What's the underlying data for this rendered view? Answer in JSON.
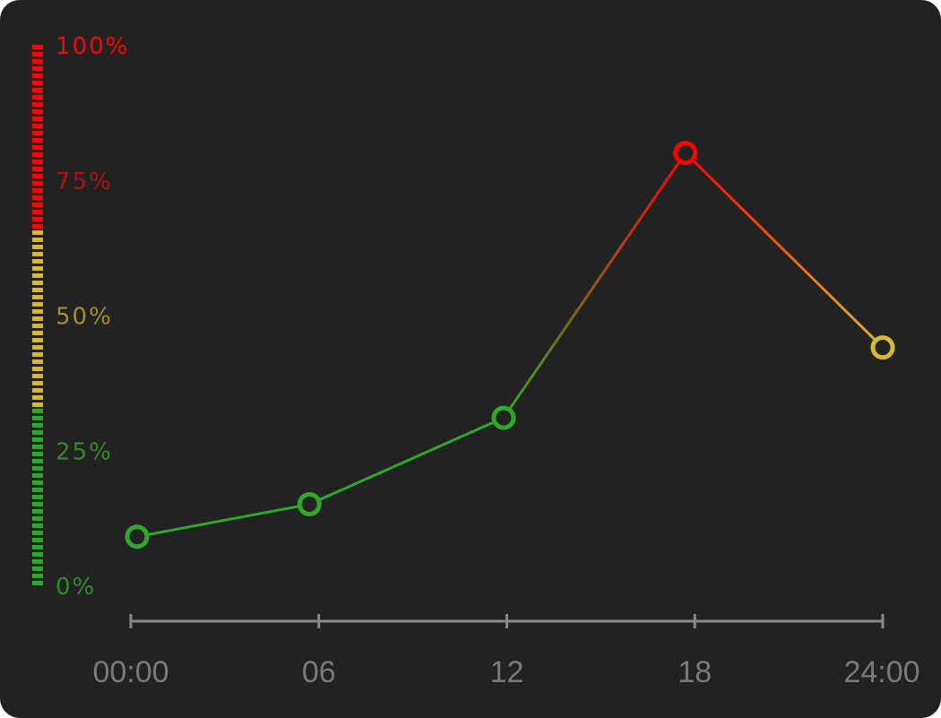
{
  "chart_data": {
    "type": "line",
    "title": "",
    "xlabel": "",
    "ylabel": "",
    "x_tick_labels": [
      "00:00",
      "06",
      "12",
      "18",
      "24:00"
    ],
    "x_range": [
      0,
      24
    ],
    "y_tick_labels": [
      "0%",
      "25%",
      "50%",
      "75%",
      "100%"
    ],
    "y_range": [
      0,
      100
    ],
    "grid": false,
    "series": [
      {
        "points": [
          {
            "x": 0.2,
            "y": 9
          },
          {
            "x": 5.7,
            "y": 15
          },
          {
            "x": 11.9,
            "y": 31
          },
          {
            "x": 17.7,
            "y": 80
          },
          {
            "x": 24,
            "y": 44
          }
        ]
      }
    ],
    "color_bands": [
      {
        "from": 0,
        "to": 33,
        "color": "#2da829"
      },
      {
        "from": 33,
        "to": 66,
        "color": "#d9b92f"
      },
      {
        "from": 66,
        "to": 100,
        "color": "#ff0000"
      }
    ],
    "y_label_colors": [
      "#2f8a2a",
      "#2f8a2a",
      "#a58f2d",
      "#a91212",
      "#ff0000"
    ],
    "axis_color": "#8a8a8a",
    "x_label_color": "#7a7a7a",
    "background": "#222222"
  }
}
